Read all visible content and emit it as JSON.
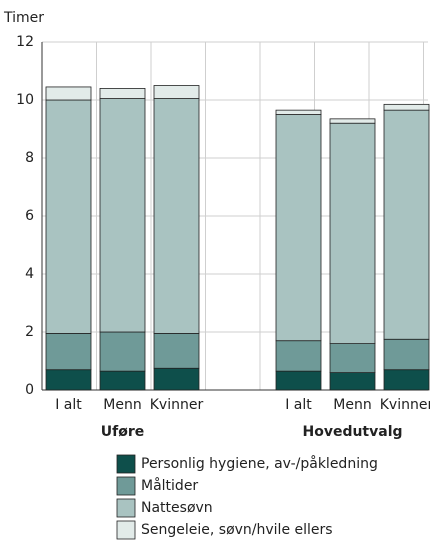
{
  "chart_data": {
    "type": "stacked_bar",
    "y_label": "Timer",
    "categories": [
      "I alt",
      "Menn",
      "Kvinner",
      "I alt",
      "Menn",
      "Kvinner"
    ],
    "groups": [
      "Uføre",
      "Hovedutvalg"
    ],
    "series": [
      {
        "name": "Personlig hygiene, av-/påkledning",
        "color": "#0e4f4b",
        "values": [
          0.7,
          0.65,
          0.75,
          0.65,
          0.6,
          0.7
        ]
      },
      {
        "name": "Måltider",
        "color": "#6f9a98",
        "values": [
          1.25,
          1.35,
          1.2,
          1.05,
          1.0,
          1.05
        ]
      },
      {
        "name": "Nattesøvn",
        "color": "#a9c3c1",
        "values": [
          8.05,
          8.05,
          8.1,
          7.8,
          7.6,
          7.9
        ]
      },
      {
        "name": "Sengeleie, søvn/hvile ellers",
        "color": "#e2ebe9",
        "values": [
          0.45,
          0.35,
          0.45,
          0.15,
          0.15,
          0.2
        ]
      }
    ],
    "ylim": [
      0,
      12
    ],
    "yticks": [
      0,
      2,
      4,
      6,
      8,
      10,
      12
    ],
    "grid": true
  }
}
